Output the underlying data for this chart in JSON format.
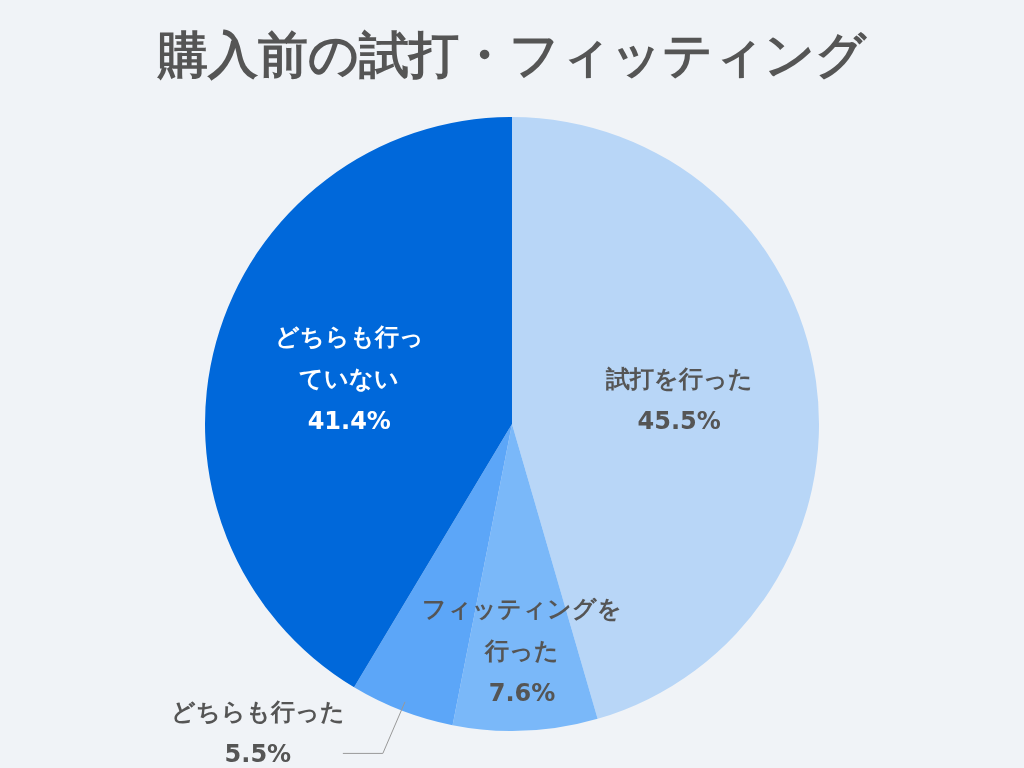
{
  "chart_data": {
    "type": "pie",
    "title": "購入前の試打・フィッティング",
    "categories": [
      "試打を行った",
      "フィッティングを行った",
      "どちらも行った",
      "どちらも行っていない"
    ],
    "values": [
      45.5,
      7.6,
      5.5,
      41.4
    ],
    "value_labels": [
      "45.5%",
      "7.6%",
      "5.5%",
      "41.4%"
    ],
    "colors": [
      "#b8d6f7",
      "#7ab8f9",
      "#5ca6f8",
      "#0068da"
    ]
  }
}
